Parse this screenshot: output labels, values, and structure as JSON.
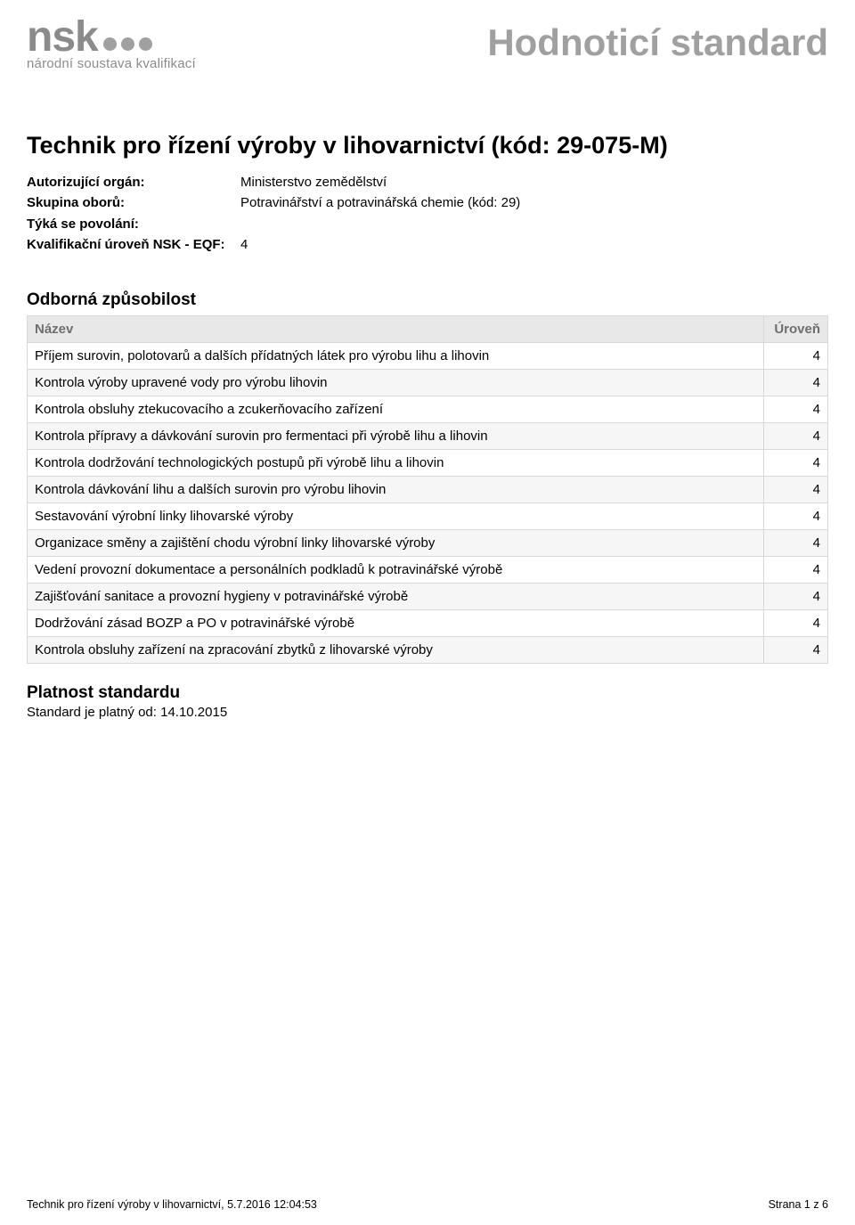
{
  "logo": {
    "main_text": "nsk",
    "subtitle": "národní soustava kvalifikací",
    "dot_color": "#a0a0a0",
    "text_color": "#8b8b8b"
  },
  "document_header": "Hodnoticí standard",
  "page_title": "Technik pro řízení výroby v lihovarnictví (kód: 29-075-M)",
  "meta": [
    {
      "label": "Autorizující orgán:",
      "value": "Ministerstvo zemědělství"
    },
    {
      "label": "Skupina oborů:",
      "value": "Potravinářství a potravinářská chemie (kód: 29)"
    },
    {
      "label": "Týká se povolání:",
      "value": ""
    },
    {
      "label": "Kvalifikační úroveň NSK - EQF:",
      "value": "4"
    }
  ],
  "competence_section_heading": "Odborná způsobilost",
  "table_headers": {
    "name": "Název",
    "level": "Úroveň"
  },
  "competencies": [
    {
      "name": "Příjem surovin, polotovarů a dalších přídatných látek pro výrobu lihu a lihovin",
      "level": "4"
    },
    {
      "name": "Kontrola výroby upravené vody pro výrobu lihovin",
      "level": "4"
    },
    {
      "name": "Kontrola obsluhy ztekucovacího a zcukerňovacího zařízení",
      "level": "4"
    },
    {
      "name": "Kontrola přípravy a dávkování surovin pro fermentaci při výrobě lihu a lihovin",
      "level": "4"
    },
    {
      "name": "Kontrola dodržování technologických postupů při výrobě lihu a lihovin",
      "level": "4"
    },
    {
      "name": "Kontrola dávkování lihu a dalších surovin pro výrobu lihovin",
      "level": "4"
    },
    {
      "name": "Sestavování výrobní linky lihovarské výroby",
      "level": "4"
    },
    {
      "name": "Organizace směny a zajištění chodu výrobní linky lihovarské výroby",
      "level": "4"
    },
    {
      "name": "Vedení provozní dokumentace a personálních podkladů k potravinářské výrobě",
      "level": "4"
    },
    {
      "name": "Zajišťování sanitace a provozní hygieny v potravinářské výrobě",
      "level": "4"
    },
    {
      "name": "Dodržování zásad BOZP a PO v potravinářské výrobě",
      "level": "4"
    },
    {
      "name": "Kontrola obsluhy zařízení na zpracování zbytků z lihovarské výroby",
      "level": "4"
    }
  ],
  "validity": {
    "heading": "Platnost standardu",
    "text": "Standard je platný od: 14.10.2015"
  },
  "footer": {
    "left": "Technik pro řízení výroby v lihovarnictví,  5.7.2016 12:04:53",
    "right": "Strana 1 z 6"
  },
  "colors": {
    "header_bg": "#e8e8e8",
    "header_text": "#6f6f6f",
    "border": "#d8d8d8",
    "row_alt_bg": "#f6f6f6",
    "doc_header_color": "#a0a0a0"
  }
}
